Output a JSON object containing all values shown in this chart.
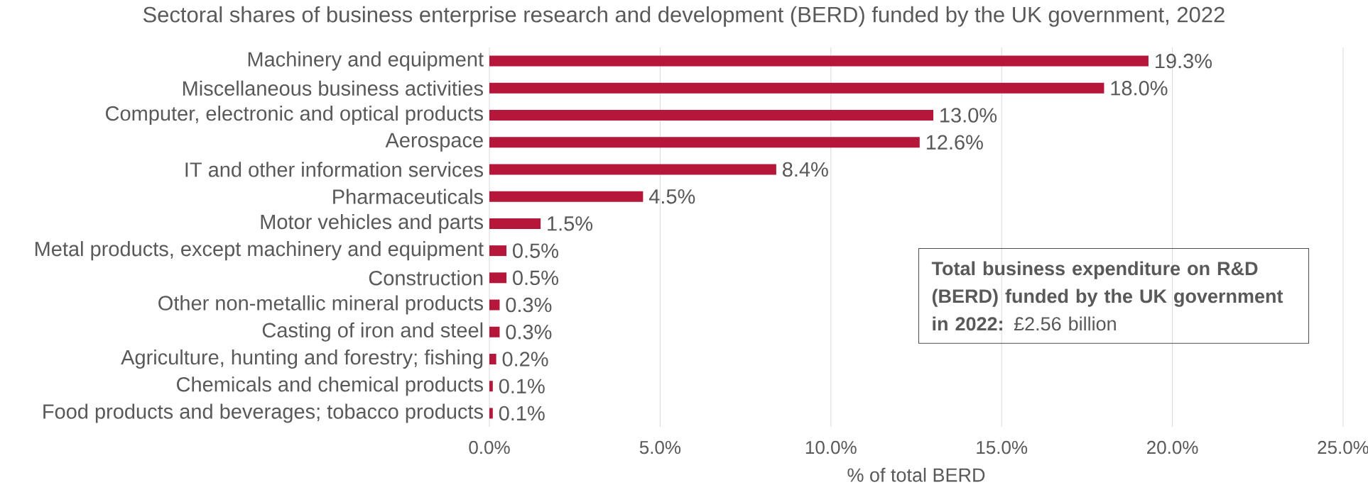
{
  "chart_data": {
    "type": "bar",
    "orientation": "horizontal",
    "title": "Sectoral shares of business enterprise research and development (BERD) funded by the UK government, 2022",
    "xlabel": "% of total BERD",
    "categories": [
      "Machinery and equipment",
      "Miscellaneous business activities",
      "Computer, electronic and optical products",
      "Aerospace",
      "IT and other information services",
      "Pharmaceuticals",
      "Motor vehicles and parts",
      "Metal products, except machinery and equipment",
      "Construction",
      "Other non-metallic mineral products",
      "Casting of iron and steel",
      "Agriculture, hunting and forestry; fishing",
      "Chemicals and chemical products",
      "Food products and beverages; tobacco products"
    ],
    "values": [
      19.3,
      18.0,
      13.0,
      12.6,
      8.4,
      4.5,
      1.5,
      0.5,
      0.5,
      0.3,
      0.3,
      0.2,
      0.1,
      0.1
    ],
    "value_labels": [
      "19.3%",
      "18.0%",
      "13.0%",
      "12.6%",
      "8.4%",
      "4.5%",
      "1.5%",
      "0.5%",
      "0.5%",
      "0.3%",
      "0.3%",
      "0.2%",
      "0.1%",
      "0.1%"
    ],
    "color": "#b5173a",
    "xlim": [
      0,
      25
    ],
    "xticks": [
      {
        "value": 0,
        "label": "0.0%"
      },
      {
        "value": 5,
        "label": "5.0%"
      },
      {
        "value": 10,
        "label": "10.0%"
      },
      {
        "value": 15,
        "label": "15.0%"
      },
      {
        "value": 20,
        "label": "20.0%"
      },
      {
        "value": 25,
        "label": "25.0%"
      }
    ],
    "grid": "x",
    "annotations": [
      "**Total business expenditure on R&D (BERD) funded by the UK government in 2022:** £2.56 billion"
    ]
  }
}
